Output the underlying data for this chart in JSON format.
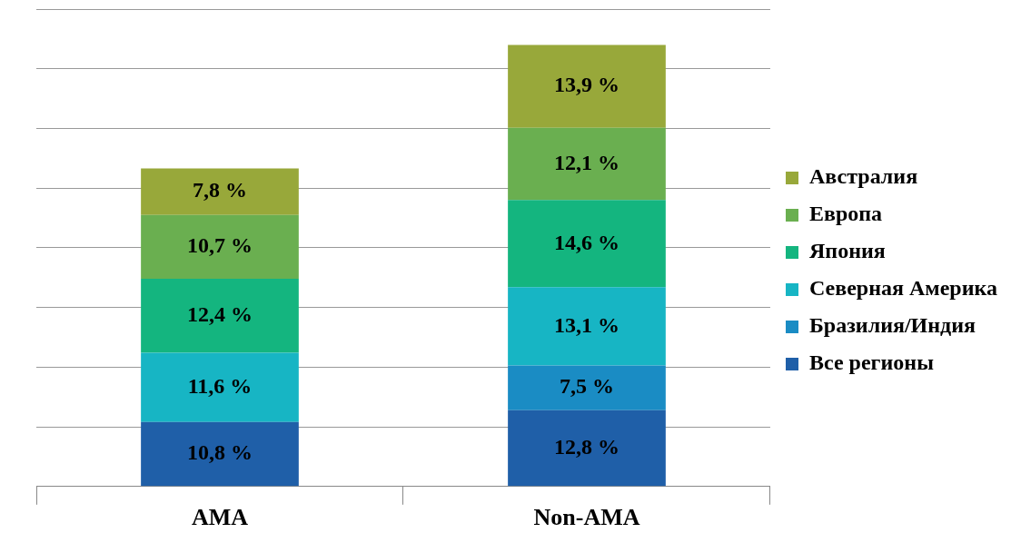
{
  "chart_data": {
    "type": "bar",
    "stacked": true,
    "categories": [
      "AMA",
      "Non-AMA"
    ],
    "series": [
      {
        "name": "Все регионы",
        "color": "#1f5fa8",
        "values": [
          10.8,
          12.8
        ],
        "value_labels": [
          "10,8 %",
          "12,8 %"
        ]
      },
      {
        "name": "Бразилия/Индия",
        "color": "#1a8cc4",
        "values": [
          null,
          7.5
        ],
        "value_labels": [
          null,
          "7,5 %"
        ]
      },
      {
        "name": "Северная Америка",
        "color": "#17b5c4",
        "values": [
          11.6,
          13.1
        ],
        "value_labels": [
          "11,6 %",
          "13,1 %"
        ]
      },
      {
        "name": "Япония",
        "color": "#14b57f",
        "values": [
          12.4,
          14.6
        ],
        "value_labels": [
          "12,4 %",
          "14,6 %"
        ]
      },
      {
        "name": "Европа",
        "color": "#6aaf50",
        "values": [
          10.7,
          12.1
        ],
        "value_labels": [
          "10,7 %",
          "12,1 %"
        ]
      },
      {
        "name": "Австралия",
        "color": "#98a83a",
        "values": [
          7.8,
          13.9
        ],
        "value_labels": [
          "7,8 %",
          "13,9 %"
        ]
      }
    ],
    "tick_labels": "x",
    "grid": "y",
    "legend": "right"
  }
}
